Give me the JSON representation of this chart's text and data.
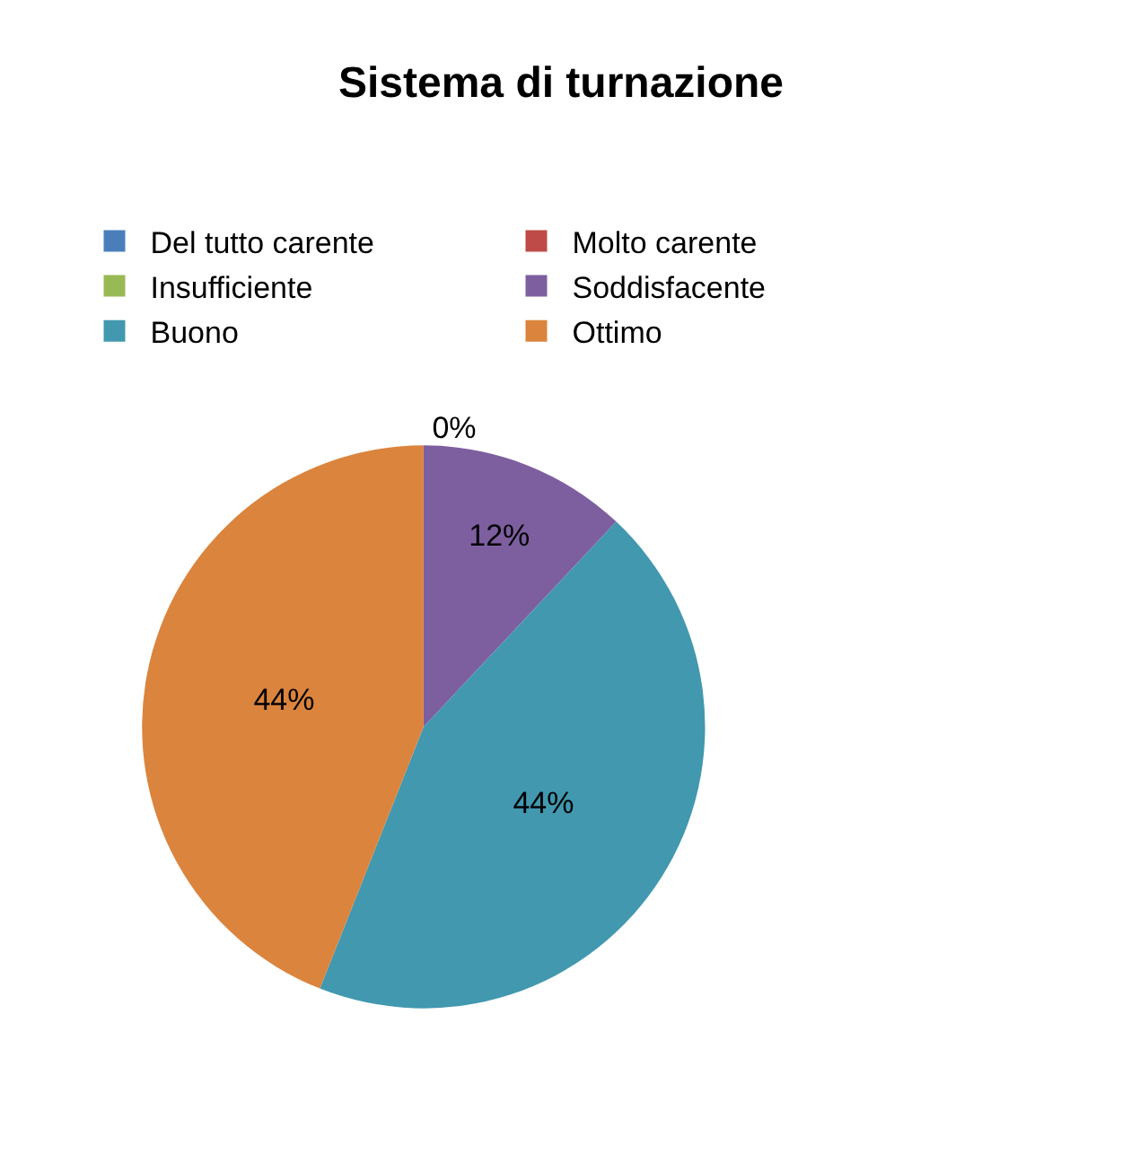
{
  "chart_data": {
    "type": "pie",
    "title": "Sistema di turnazione",
    "categories": [
      "Del tutto carente",
      "Molto carente",
      "Insufficiente",
      "Soddisfacente",
      "Buono",
      "Ottimo"
    ],
    "values": [
      0,
      0,
      0,
      12,
      44,
      44
    ],
    "colors": [
      "#4a7ebb",
      "#be4b48",
      "#98b954",
      "#7d5fa0",
      "#4198af",
      "#db843d"
    ],
    "value_labels": [
      "0%",
      null,
      null,
      "12%",
      "44%",
      "44%"
    ],
    "legend": "top"
  }
}
